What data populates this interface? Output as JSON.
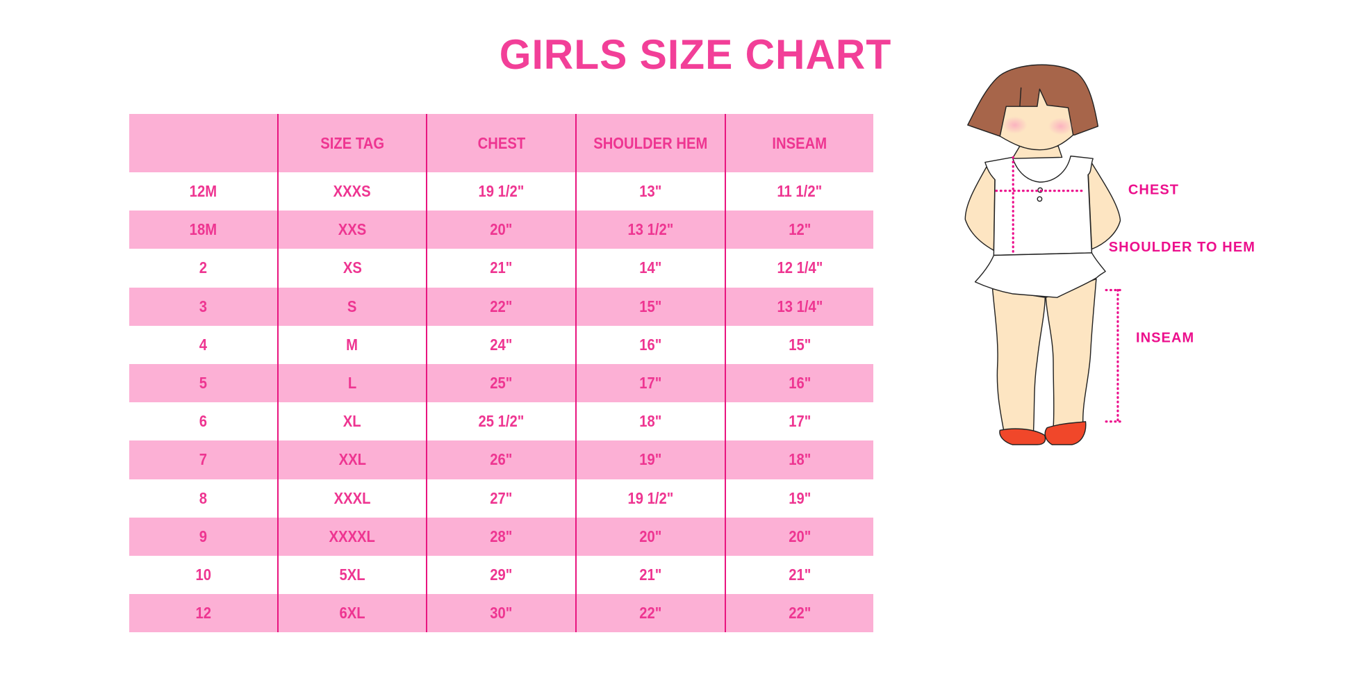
{
  "title": "GIRLS SIZE CHART",
  "table": {
    "headers": [
      "",
      "SIZE TAG",
      "CHEST",
      "SHOULDER HEM",
      "INSEAM"
    ],
    "rows": [
      [
        "12M",
        "XXXS",
        "19 1/2\"",
        "13\"",
        "11 1/2\""
      ],
      [
        "18M",
        "XXS",
        "20\"",
        "13 1/2\"",
        "12\""
      ],
      [
        "2",
        "XS",
        "21\"",
        "14\"",
        "12 1/4\""
      ],
      [
        "3",
        "S",
        "22\"",
        "15\"",
        "13 1/4\""
      ],
      [
        "4",
        "M",
        "24\"",
        "16\"",
        "15\""
      ],
      [
        "5",
        "L",
        "25\"",
        "17\"",
        "16\""
      ],
      [
        "6",
        "XL",
        "25 1/2\"",
        "18\"",
        "17\""
      ],
      [
        "7",
        "XXL",
        "26\"",
        "19\"",
        "18\""
      ],
      [
        "8",
        "XXXL",
        "27\"",
        "19 1/2\"",
        "19\""
      ],
      [
        "9",
        "XXXXL",
        "28\"",
        "20\"",
        "20\""
      ],
      [
        "10",
        "5XL",
        "29\"",
        "21\"",
        "21\""
      ],
      [
        "12",
        "6XL",
        "30\"",
        "22\"",
        "22\""
      ]
    ]
  },
  "figure": {
    "labels": {
      "chest": "CHEST",
      "shoulder_to_hem": "SHOULDER TO HEM",
      "inseam": "INSEAM"
    }
  },
  "colors": {
    "accent": "#ee3591",
    "row_fill": "#fcb0d5",
    "divider": "#e8157f"
  }
}
